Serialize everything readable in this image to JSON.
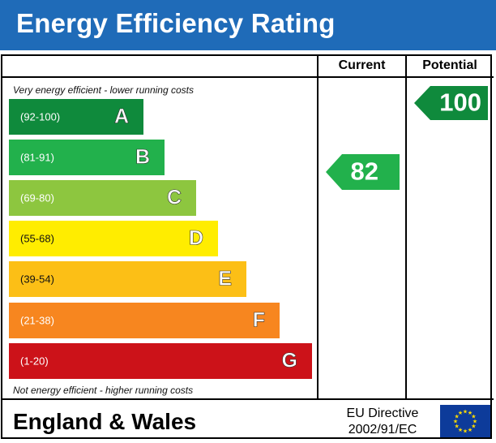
{
  "header": {
    "title": "Energy Efficiency Rating",
    "title_bg": "#1f6bb8"
  },
  "columns": {
    "current": "Current",
    "potential": "Potential"
  },
  "notes": {
    "top": "Very energy efficient - lower running costs",
    "bottom": "Not energy efficient - higher running costs"
  },
  "footer": {
    "region": "England & Wales",
    "directive_line1": "EU Directive",
    "directive_line2": "2002/91/EC",
    "flag_icon": "eu-flag-icon"
  },
  "chart_data": {
    "type": "bar",
    "title": "Energy Efficiency Rating",
    "bands": [
      {
        "letter": "A",
        "range": "(92-100)",
        "min": 92,
        "max": 100,
        "color": "#0f8a3c"
      },
      {
        "letter": "B",
        "range": "(81-91)",
        "min": 81,
        "max": 91,
        "color": "#22b14c"
      },
      {
        "letter": "C",
        "range": "(69-80)",
        "min": 69,
        "max": 80,
        "color": "#8dc63f"
      },
      {
        "letter": "D",
        "range": "(55-68)",
        "min": 55,
        "max": 68,
        "color": "#ffed00"
      },
      {
        "letter": "E",
        "range": "(39-54)",
        "min": 39,
        "max": 54,
        "color": "#fcbf16"
      },
      {
        "letter": "F",
        "range": "(21-38)",
        "min": 21,
        "max": 38,
        "color": "#f7861f"
      },
      {
        "letter": "G",
        "range": "(1-20)",
        "min": 1,
        "max": 20,
        "color": "#cc1219"
      }
    ],
    "current": {
      "value": 82,
      "band": "B",
      "color": "#22b14c"
    },
    "potential": {
      "value": 100,
      "band": "A",
      "color": "#0f8a3c"
    }
  }
}
